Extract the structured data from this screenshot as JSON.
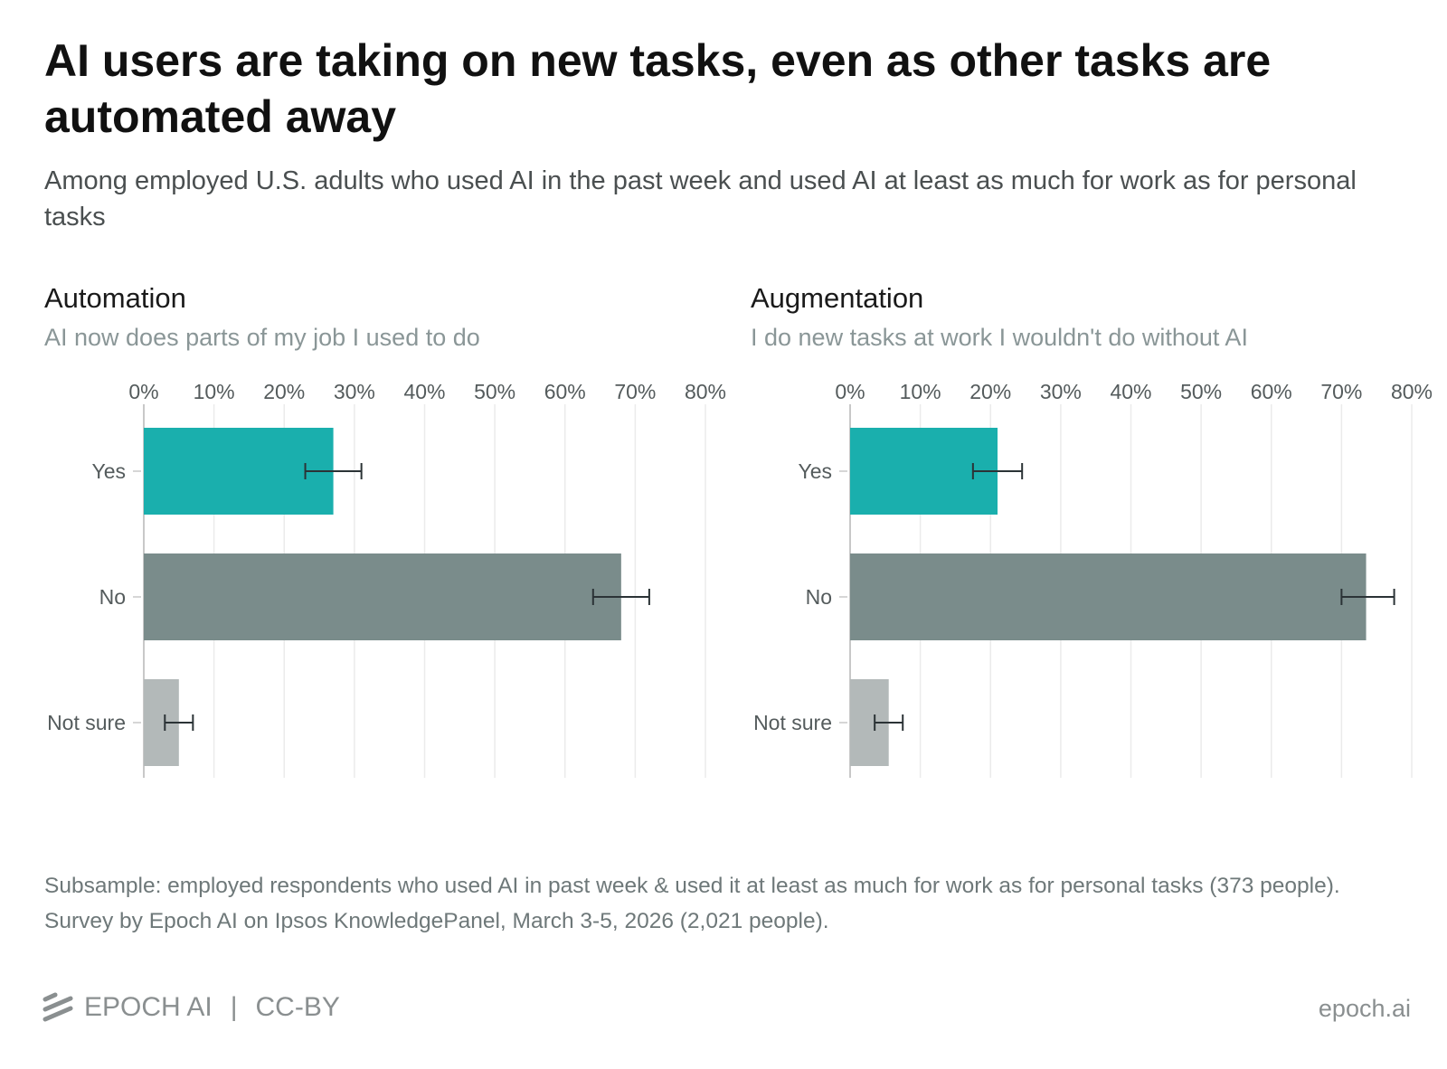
{
  "title": "AI users are taking on new tasks, even as other tasks are automated away",
  "subtitle": "Among employed U.S. adults who used AI in the past week and used AI at least as much for work as for personal tasks",
  "colors": {
    "yes": "#1aafad",
    "no": "#7a8c8b",
    "not_sure": "#b3b9b9",
    "error_bar": "#2b3336",
    "grid": "#ebebeb"
  },
  "chart_data": [
    {
      "type": "bar",
      "orientation": "horizontal",
      "title": "Automation",
      "subtitle": "AI now does parts of my job I used to do",
      "categories": [
        "Yes",
        "No",
        "Not sure"
      ],
      "values": [
        27,
        68,
        5
      ],
      "error_low": [
        23,
        64,
        3
      ],
      "error_high": [
        31,
        72,
        7
      ],
      "unit": "%",
      "xlim": [
        0,
        80
      ],
      "ticks": [
        "0%",
        "10%",
        "20%",
        "30%",
        "40%",
        "50%",
        "60%",
        "70%",
        "80%"
      ],
      "grid": true
    },
    {
      "type": "bar",
      "orientation": "horizontal",
      "title": "Augmentation",
      "subtitle": "I do new tasks at work I wouldn't do without AI",
      "categories": [
        "Yes",
        "No",
        "Not sure"
      ],
      "values": [
        21,
        73.5,
        5.5
      ],
      "error_low": [
        17.5,
        70,
        3.5
      ],
      "error_high": [
        24.5,
        77.5,
        7.5
      ],
      "unit": "%",
      "xlim": [
        0,
        80
      ],
      "ticks": [
        "0%",
        "10%",
        "20%",
        "30%",
        "40%",
        "50%",
        "60%",
        "70%",
        "80%"
      ],
      "grid": true
    }
  ],
  "footnote": "Subsample: employed respondents who used AI in past week & used it at least as much for work as for personal tasks (373 people). Survey by Epoch AI on Ipsos KnowledgePanel, March 3-5, 2026 (2,021 people).",
  "footer": {
    "brand": "EPOCH AI",
    "license": "CC-BY",
    "separator": "|",
    "site": "epoch.ai"
  }
}
